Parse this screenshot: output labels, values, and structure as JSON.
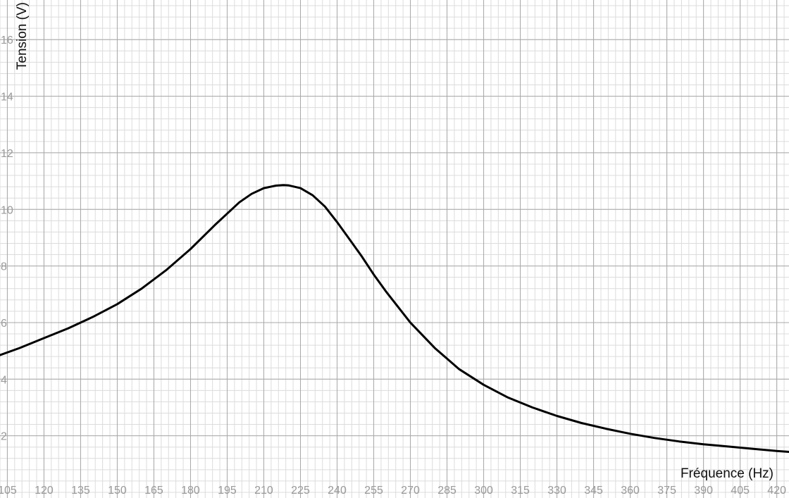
{
  "chart_data": {
    "type": "line",
    "xlabel": "Fréquence (Hz)",
    "ylabel": "Tension (V)",
    "xlim": [
      102,
      425
    ],
    "ylim": [
      -0.2,
      17.4
    ],
    "x_ticks": [
      105,
      120,
      135,
      150,
      165,
      180,
      195,
      210,
      225,
      240,
      255,
      270,
      285,
      300,
      315,
      330,
      345,
      360,
      375,
      390,
      405,
      420
    ],
    "y_ticks": [
      2,
      4,
      6,
      8,
      10,
      12,
      14,
      16
    ],
    "x_minor_step": 3,
    "y_minor_step": 0.4,
    "grid": true,
    "curve_color": "#000000",
    "series": [
      {
        "x": [
          102,
          110,
          120,
          130,
          140,
          150,
          160,
          170,
          180,
          190,
          200,
          205,
          210,
          215,
          218,
          220,
          225,
          230,
          235,
          240,
          245,
          250,
          255,
          260,
          270,
          280,
          290,
          300,
          310,
          320,
          330,
          340,
          350,
          360,
          370,
          380,
          390,
          400,
          410,
          420,
          425
        ],
        "y": [
          4.85,
          5.1,
          5.45,
          5.8,
          6.2,
          6.65,
          7.2,
          7.85,
          8.6,
          9.45,
          10.25,
          10.55,
          10.75,
          10.84,
          10.86,
          10.85,
          10.75,
          10.5,
          10.1,
          9.55,
          8.95,
          8.35,
          7.7,
          7.1,
          6.0,
          5.1,
          4.35,
          3.8,
          3.35,
          3.0,
          2.7,
          2.45,
          2.25,
          2.07,
          1.92,
          1.8,
          1.7,
          1.62,
          1.54,
          1.46,
          1.43
        ]
      }
    ]
  }
}
